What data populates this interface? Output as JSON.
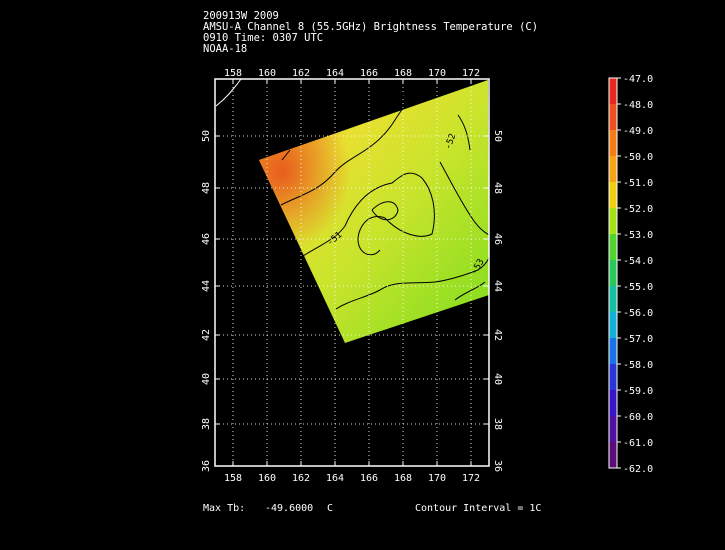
{
  "header": {
    "line1": "200913W 2009",
    "line2": "AMSU-A Channel 8 (55.5GHz) Brightness Temperature (C)",
    "line3": "0910 Time: 0307 UTC",
    "line4": "NOAA-18"
  },
  "map": {
    "lon_ticks": [
      "158",
      "160",
      "162",
      "164",
      "166",
      "168",
      "170",
      "172"
    ],
    "lat_ticks": [
      "36",
      "38",
      "40",
      "42",
      "44",
      "46",
      "48",
      "50"
    ],
    "contour_labels": [
      "-51",
      "-52",
      "-51",
      "-53"
    ]
  },
  "colorbar": {
    "labels": [
      "-47.0",
      "-48.0",
      "-49.0",
      "-50.0",
      "-51.0",
      "-52.0",
      "-53.0",
      "-54.0",
      "-55.0",
      "-56.0",
      "-57.0",
      "-58.0",
      "-59.0",
      "-60.0",
      "-61.0",
      "-62.0"
    ],
    "colors": [
      "#e8281e",
      "#f0501c",
      "#f57d18",
      "#f7a315",
      "#f0d010",
      "#a8e018",
      "#52d430",
      "#2ac85a",
      "#14c0a0",
      "#14b0d8",
      "#1874e8",
      "#2838d8",
      "#3c14c8",
      "#5012a0",
      "#5a0c78",
      "#fafafa"
    ]
  },
  "footer": {
    "max_label": "Max Tb:",
    "max_value": "-49.6000",
    "max_unit": "C",
    "contour": "Contour Interval = 1C"
  }
}
